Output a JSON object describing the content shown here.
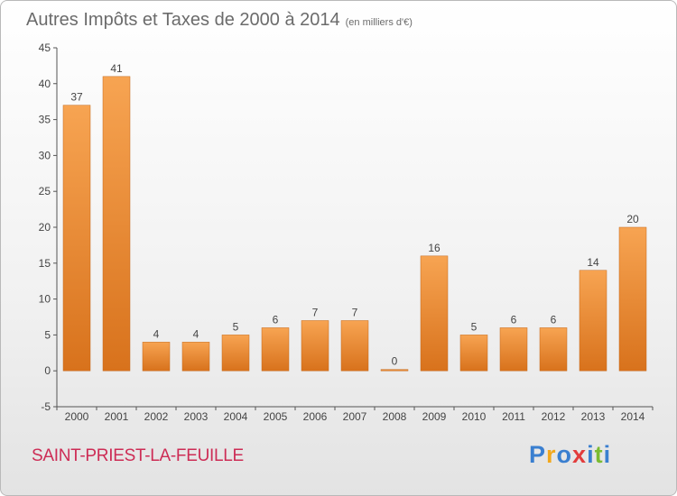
{
  "header": {
    "title": "Autres Impôts et Taxes de 2000 à 2014",
    "unit": "(en milliers d'€)"
  },
  "footer": {
    "town": "SAINT-PRIEST-LA-FEUILLE"
  },
  "logo": {
    "letters": [
      "P",
      "r",
      "o",
      "x",
      "i",
      "t",
      "i"
    ],
    "colors": [
      "#3a7fd0",
      "#f2a81c",
      "#3a7fd0",
      "#e23c3c",
      "#3a7fd0",
      "#7bbb32",
      "#3a7fd0"
    ]
  },
  "chart_data": {
    "type": "bar",
    "categories": [
      "2000",
      "2001",
      "2002",
      "2003",
      "2004",
      "2005",
      "2006",
      "2007",
      "2008",
      "2009",
      "2010",
      "2011",
      "2012",
      "2013",
      "2014"
    ],
    "values": [
      37,
      41,
      4,
      4,
      5,
      6,
      7,
      7,
      0,
      16,
      5,
      6,
      6,
      14,
      20
    ],
    "title": "Autres Impôts et Taxes de 2000 à 2014",
    "ylabel": "",
    "ylim": [
      -5,
      45
    ],
    "yticks": [
      -5,
      0,
      5,
      10,
      15,
      20,
      25,
      30,
      35,
      40,
      45
    ],
    "grid": false,
    "bar_color_light": "#f7a452",
    "bar_color_dark": "#d8721c"
  }
}
